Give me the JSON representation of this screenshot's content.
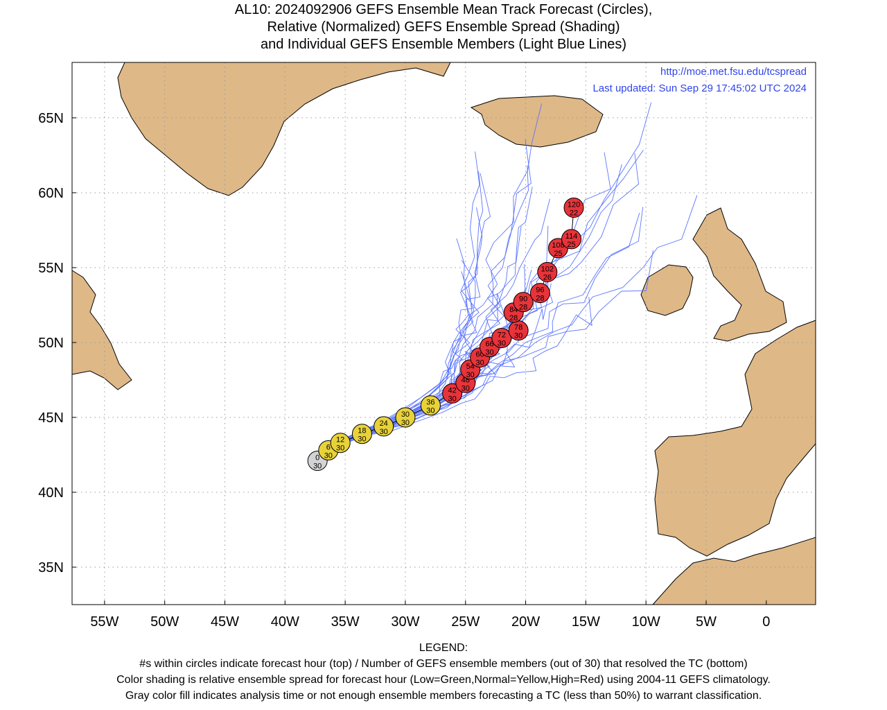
{
  "title": {
    "line1": "AL10: 2024092906 GEFS Ensemble Mean Track Forecast (Circles),",
    "line2": "Relative (Normalized) GEFS Ensemble Spread (Shading)",
    "line3": "and Individual GEFS Ensemble Members (Light Blue Lines)"
  },
  "url_text": "http://moe.met.fsu.edu/tcspread",
  "updated_text": "Last updated: Sun Sep 29 17:45:02 UTC 2024",
  "axes": {
    "lon_ticks": [
      {
        "lon": -55,
        "label": "55W"
      },
      {
        "lon": -50,
        "label": "50W"
      },
      {
        "lon": -45,
        "label": "45W"
      },
      {
        "lon": -40,
        "label": "40W"
      },
      {
        "lon": -35,
        "label": "35W"
      },
      {
        "lon": -30,
        "label": "30W"
      },
      {
        "lon": -25,
        "label": "25W"
      },
      {
        "lon": -20,
        "label": "20W"
      },
      {
        "lon": -15,
        "label": "15W"
      },
      {
        "lon": -10,
        "label": "10W"
      },
      {
        "lon": -5,
        "label": "5W"
      },
      {
        "lon": 0,
        "label": "0"
      }
    ],
    "lat_ticks": [
      {
        "lat": 35,
        "label": "35N"
      },
      {
        "lat": 40,
        "label": "40N"
      },
      {
        "lat": 45,
        "label": "45N"
      },
      {
        "lat": 50,
        "label": "50N"
      },
      {
        "lat": 55,
        "label": "55N"
      },
      {
        "lat": 60,
        "label": "60N"
      },
      {
        "lat": 65,
        "label": "65N"
      }
    ],
    "lon_range": [
      -57.7,
      4.1
    ],
    "lat_range": [
      32.5,
      68.7
    ]
  },
  "colors": {
    "land": "#deb887",
    "track_lines": "#5a74ff",
    "gray": "#d3d3d3",
    "yellow": "#e8d23a",
    "red": "#e8333a",
    "text_blue": "#3044e8"
  },
  "chart_data": {
    "type": "scatter",
    "title": "AL10: 2024092906 GEFS Ensemble Mean Track Forecast (Circles), Relative (Normalized) GEFS Ensemble Spread (Shading) and Individual GEFS Ensemble Members (Light Blue Lines)",
    "mean_track": [
      {
        "hour": "0",
        "members": "30",
        "lon": -37.3,
        "lat": 42.1,
        "color": "gray"
      },
      {
        "hour": "6",
        "members": "30",
        "lon": -36.4,
        "lat": 42.8,
        "color": "yellow"
      },
      {
        "hour": "12",
        "members": "30",
        "lon": -35.4,
        "lat": 43.3,
        "color": "yellow"
      },
      {
        "hour": "18",
        "members": "30",
        "lon": -33.6,
        "lat": 43.9,
        "color": "yellow"
      },
      {
        "hour": "24",
        "members": "30",
        "lon": -31.8,
        "lat": 44.4,
        "color": "yellow"
      },
      {
        "hour": "30",
        "members": "30",
        "lon": -30.0,
        "lat": 45.0,
        "color": "yellow"
      },
      {
        "hour": "36",
        "members": "30",
        "lon": -27.9,
        "lat": 45.8,
        "color": "yellow"
      },
      {
        "hour": "42",
        "members": "30",
        "lon": -26.1,
        "lat": 46.6,
        "color": "red"
      },
      {
        "hour": "48",
        "members": "30",
        "lon": -25.0,
        "lat": 47.3,
        "color": "red"
      },
      {
        "hour": "54",
        "members": "30",
        "lon": -24.6,
        "lat": 48.2,
        "color": "red"
      },
      {
        "hour": "60",
        "members": "30",
        "lon": -23.8,
        "lat": 49.0,
        "color": "red"
      },
      {
        "hour": "66",
        "members": "30",
        "lon": -23.0,
        "lat": 49.7,
        "color": "red"
      },
      {
        "hour": "72",
        "members": "30",
        "lon": -22.0,
        "lat": 50.3,
        "color": "red"
      },
      {
        "hour": "78",
        "members": "30",
        "lon": -20.6,
        "lat": 50.8,
        "color": "red"
      },
      {
        "hour": "84",
        "members": "28",
        "lon": -21.0,
        "lat": 52.0,
        "color": "red"
      },
      {
        "hour": "90",
        "members": "28",
        "lon": -20.2,
        "lat": 52.7,
        "color": "red"
      },
      {
        "hour": "96",
        "members": "28",
        "lon": -18.8,
        "lat": 53.3,
        "color": "red"
      },
      {
        "hour": "102",
        "members": "26",
        "lon": -18.2,
        "lat": 54.7,
        "color": "red"
      },
      {
        "hour": "108",
        "members": "25",
        "lon": -17.3,
        "lat": 56.3,
        "color": "red"
      },
      {
        "hour": "114",
        "members": "25",
        "lon": -16.2,
        "lat": 56.9,
        "color": "red"
      },
      {
        "hour": "120",
        "members": "22",
        "lon": -16.0,
        "lat": 59.0,
        "color": "red"
      }
    ]
  },
  "legend": {
    "heading": "LEGEND:",
    "line1": "#s within circles indicate forecast hour (top) / Number of GEFS ensemble members (out of 30) that resolved the TC (bottom)",
    "line2": "Color shading is relative ensemble spread for forecast hour (Low=Green,Normal=Yellow,High=Red) using 2004-11 GEFS climatology.",
    "line3": "Gray color fill indicates analysis time or not enough ensemble members forecasting a TC (less than 50%) to warrant classification."
  }
}
